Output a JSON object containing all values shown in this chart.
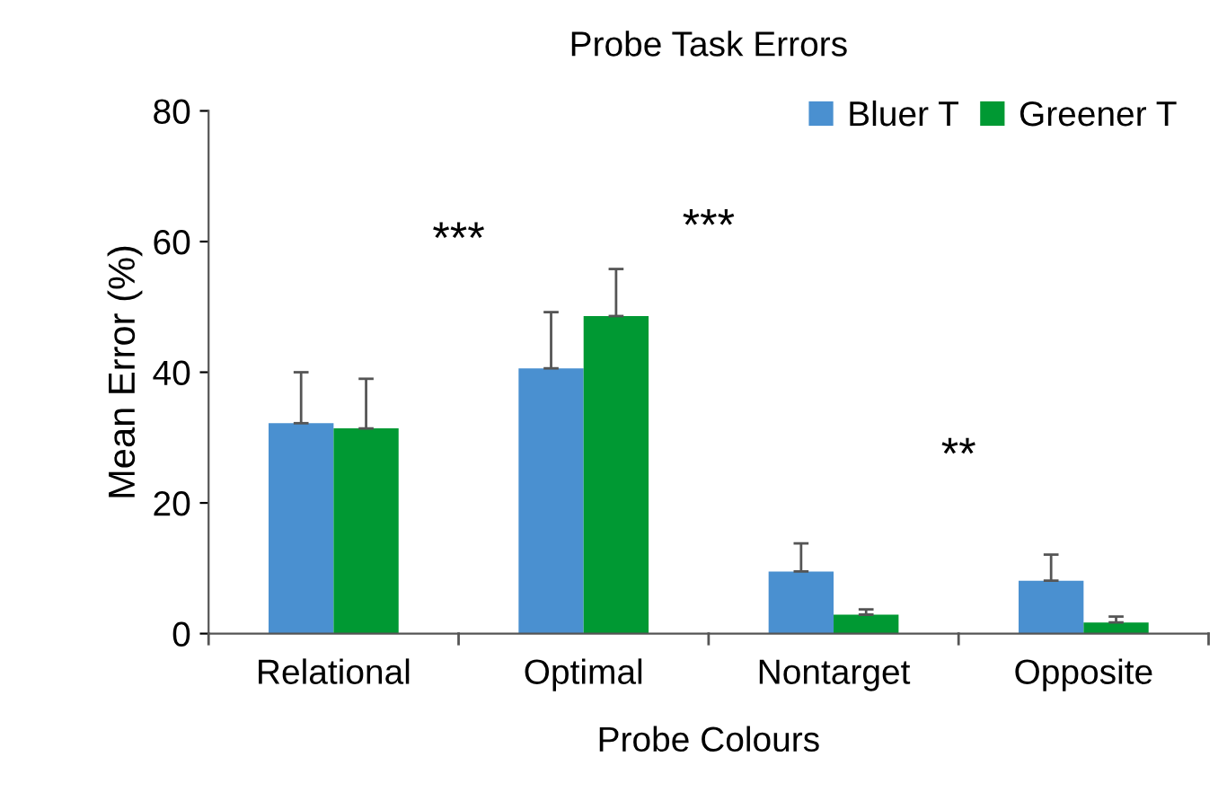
{
  "chart_data": {
    "type": "bar",
    "title": "Probe Task Errors",
    "xlabel": "Probe Colours",
    "ylabel": "Mean Error (%)",
    "categories": [
      "Relational",
      "Optimal",
      "Nontarget",
      "Opposite"
    ],
    "series": [
      {
        "name": "Bluer T",
        "color": "#4a90d0",
        "values": [
          32.2,
          40.6,
          9.5,
          8.1
        ],
        "errors": [
          [
            32.2,
            40
          ],
          [
            40.6,
            49.2
          ],
          [
            9.5,
            13.8
          ],
          [
            8.1,
            12.1
          ]
        ]
      },
      {
        "name": "Greener T",
        "color": "#009933",
        "values": [
          31.4,
          48.6,
          2.9,
          1.7
        ],
        "errors": [
          [
            31.4,
            39
          ],
          [
            48.6,
            55.8
          ],
          [
            2.9,
            3.7
          ],
          [
            1.7,
            2.6
          ]
        ]
      }
    ],
    "annotations": [
      "***",
      "***",
      "**"
    ],
    "ylim": [
      0,
      80
    ],
    "yticks": [
      0,
      20,
      40,
      60,
      80
    ],
    "grid": false,
    "legend": "top right"
  }
}
